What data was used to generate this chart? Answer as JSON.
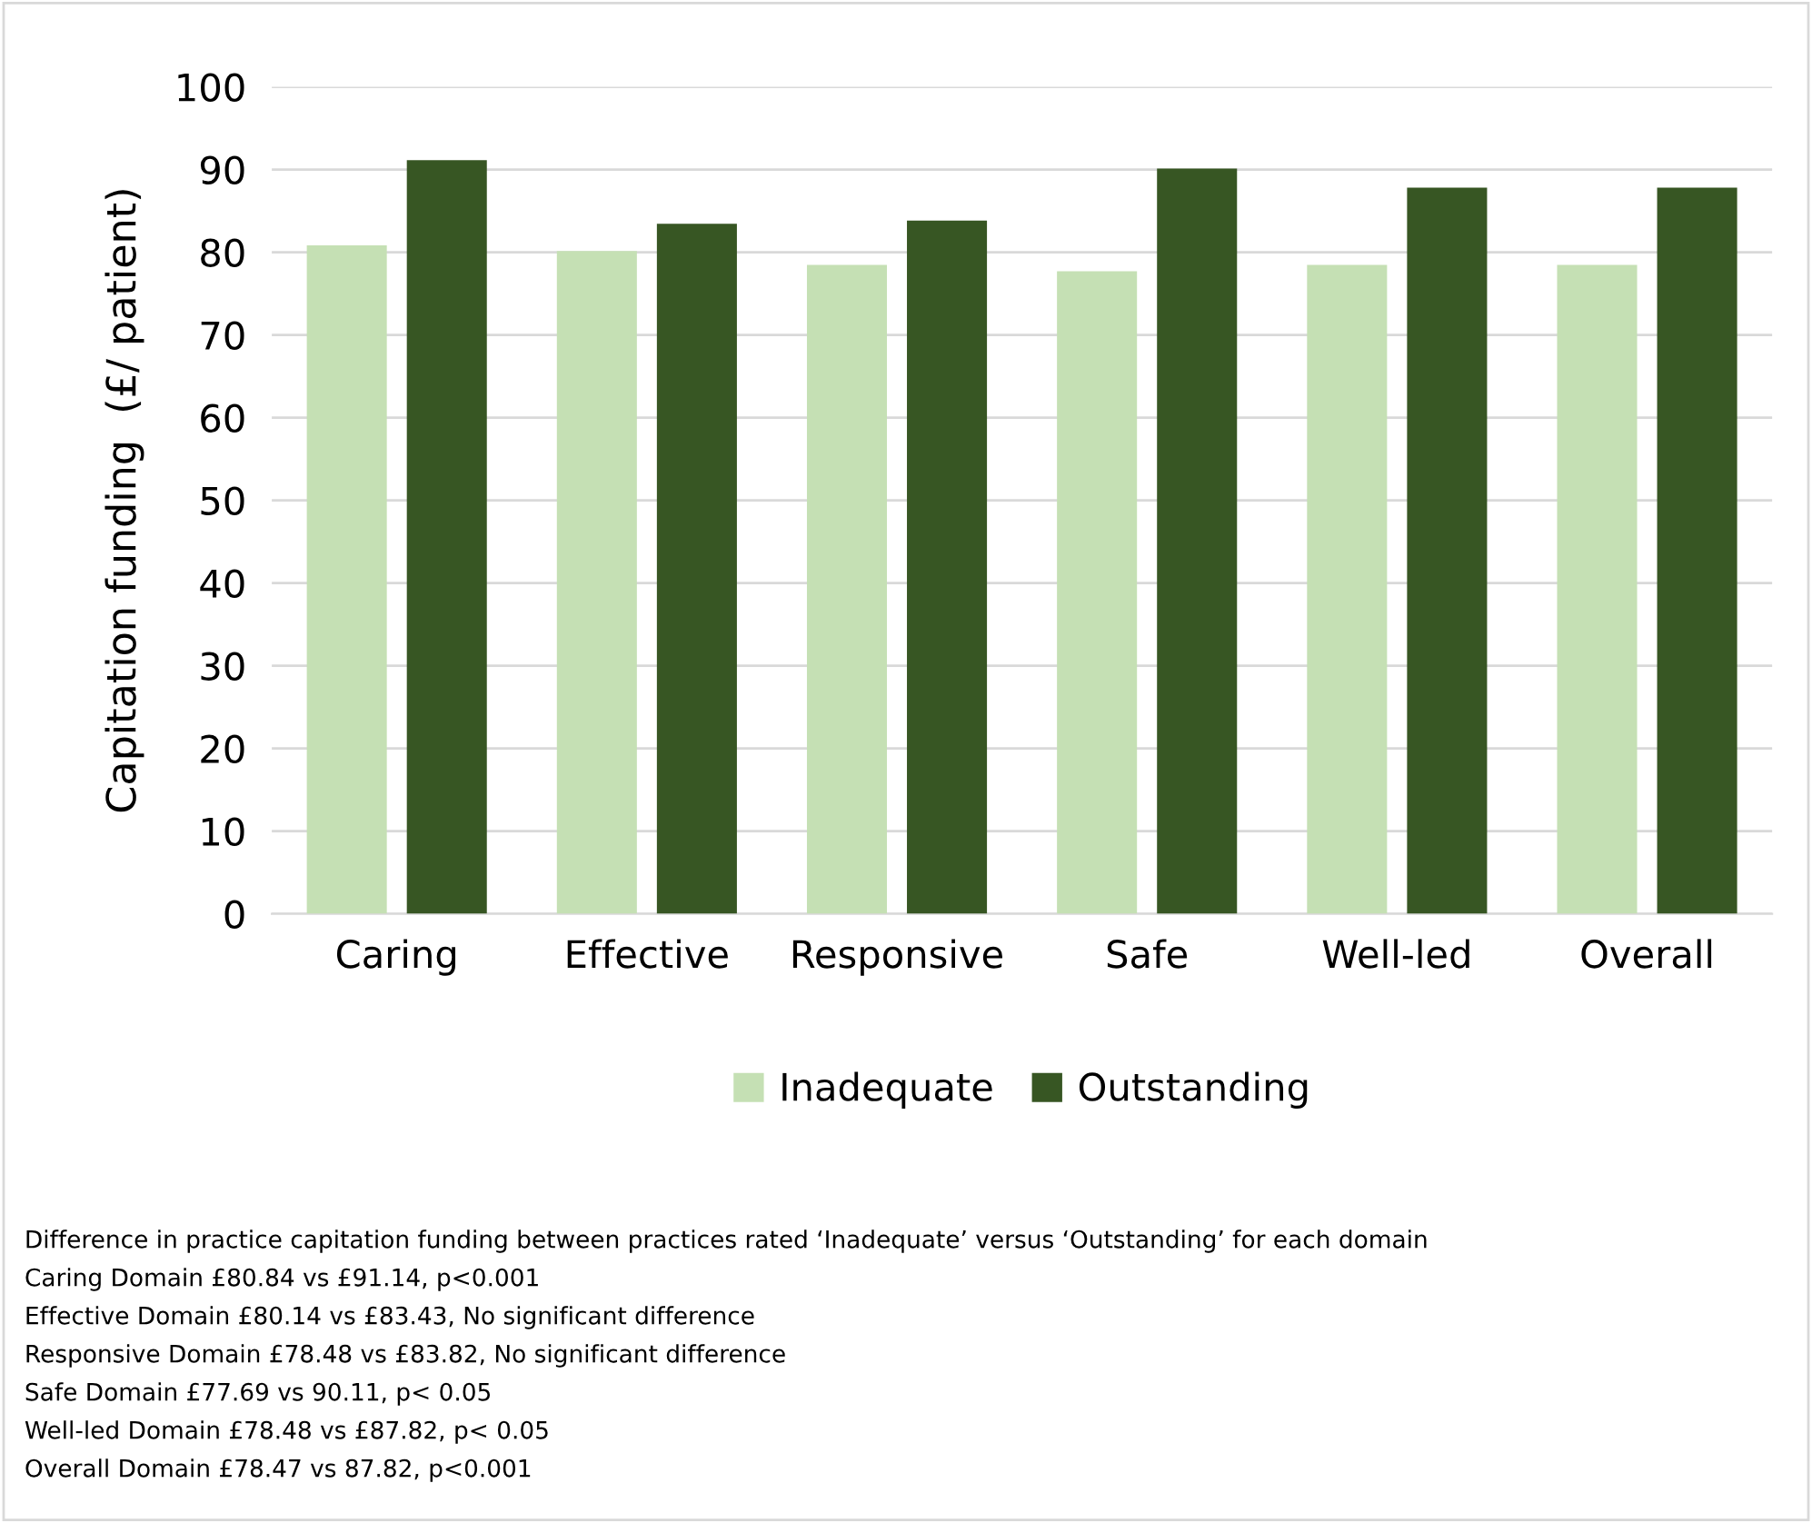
{
  "chart_data": {
    "type": "bar",
    "ylabel": "Capitation funding  (£/ patient)",
    "categories": [
      "Caring",
      "Effective",
      "Responsive",
      "Safe",
      "Well-led",
      "Overall"
    ],
    "series": [
      {
        "name": "Inadequate",
        "color": "#c5e0b4",
        "values": [
          80.84,
          80.14,
          78.48,
          77.69,
          78.48,
          78.47
        ]
      },
      {
        "name": "Outstanding",
        "color": "#375623",
        "values": [
          91.14,
          83.43,
          83.82,
          90.11,
          87.82,
          87.82
        ]
      }
    ],
    "ylim": [
      0,
      100
    ],
    "yticks": [
      0,
      10,
      20,
      30,
      40,
      50,
      60,
      70,
      80,
      90,
      100
    ],
    "grid": "y",
    "legend": "bottom",
    "annotations": [
      "Difference in practice capitation funding between practices rated ‘Inadequate’ versus ‘Outstanding’ for each domain",
      "Caring Domain £80.84 vs £91.14, p<0.001",
      "Effective Domain £80.14 vs £83.43, No significant difference",
      "Responsive Domain £78.48 vs £83.82, No significant difference",
      "Safe Domain £77.69 vs 90.11, p< 0.05",
      "Well-led Domain £78.48 vs £87.82, p< 0.05",
      "Overall Domain £78.47 vs 87.82, p<0.001"
    ]
  }
}
